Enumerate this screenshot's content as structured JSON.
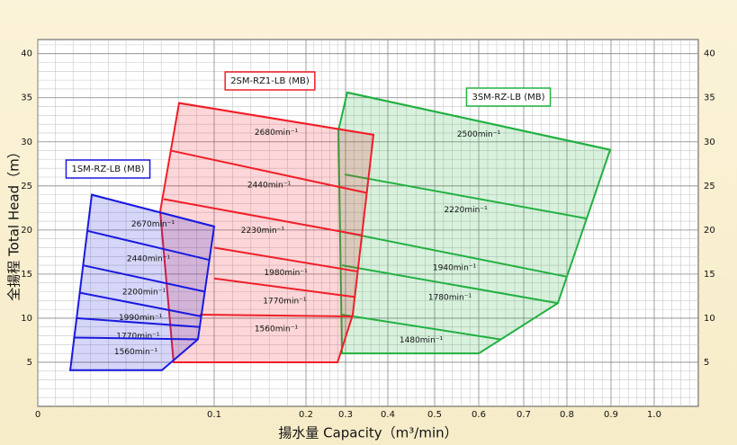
{
  "chart_data": {
    "type": "area",
    "x_label": "揚水量 Capacity（m³/min）",
    "y_label": "全揚程 Total Head（m）",
    "xlim": [
      0,
      1.1
    ],
    "ylim": [
      0,
      41.6
    ],
    "xticks": [
      {
        "value": 0,
        "label": "0"
      },
      0.1,
      0.2,
      0.3,
      0.4,
      0.5,
      0.6,
      0.7,
      0.8,
      0.9,
      {
        "value": 1.0,
        "label": "1.0"
      }
    ],
    "yticks": [
      5,
      10,
      15,
      20,
      25,
      30,
      35,
      40
    ],
    "grid": true,
    "series": [
      {
        "name": "1SM-RZ-LB (MB)",
        "color": "#1a1ae0",
        "outline": {
          "x": [
            0.0306,
            0.1,
            0.0908,
            0.0704,
            0.0184
          ],
          "y": [
            24.0,
            20.4,
            7.6,
            4.1,
            4.1
          ]
        },
        "curves": [
          {
            "label": "2670min⁻¹",
            "x": [
              0.0306,
              0.1
            ],
            "y": [
              24.0,
              20.4
            ]
          },
          {
            "label": "2440min⁻¹",
            "x": [
              0.0281,
              0.0974
            ],
            "y": [
              19.9,
              16.6
            ]
          },
          {
            "label": "2200min⁻¹",
            "x": [
              0.0255,
              0.0949
            ],
            "y": [
              16.0,
              13.0
            ]
          },
          {
            "label": "1990min⁻¹",
            "x": [
              0.0235,
              0.0929
            ],
            "y": [
              12.9,
              10.2
            ]
          },
          {
            "label": "1770min⁻¹",
            "x": [
              0.0219,
              0.0918
            ],
            "y": [
              10.0,
              9.0
            ]
          },
          {
            "label": "1560min⁻¹",
            "x": [
              0.0204,
              0.0908
            ],
            "y": [
              7.8,
              7.6
            ]
          }
        ]
      },
      {
        "name": "2SM-RZ1-LB (MB)",
        "color": "#f01e28",
        "outline": {
          "x": [
            0.0801,
            0.366,
            0.317,
            0.28,
            0.077,
            0.0694
          ],
          "y": [
            34.4,
            30.8,
            10.4,
            5.0,
            5.0,
            22.1
          ]
        },
        "curves": [
          {
            "label": "2680min⁻¹",
            "x": [
              0.0801,
              0.366
            ],
            "y": [
              34.4,
              30.8
            ]
          },
          {
            "label": "2440min⁻¹",
            "x": [
              0.0755,
              0.351
            ],
            "y": [
              29.0,
              24.2
            ]
          },
          {
            "label": "2230min⁻¹",
            "x": [
              0.0714,
              0.338
            ],
            "y": [
              23.5,
              19.4
            ]
          },
          {
            "label": "1980min⁻¹",
            "x": [
              0.1,
              0.328
            ],
            "y": [
              18.0,
              15.3
            ]
          },
          {
            "label": "1770min⁻¹",
            "x": [
              0.1,
              0.323
            ],
            "y": [
              14.5,
              12.4
            ]
          },
          {
            "label": "1560min⁻¹",
            "x": [
              0.0918,
              0.317
            ],
            "y": [
              10.4,
              10.2
            ]
          }
        ]
      },
      {
        "name": "3SM-RZ-LB (MB)",
        "color": "#22b040",
        "outline": {
          "x": [
            0.304,
            0.898,
            0.779,
            0.6,
            0.291,
            0.282
          ],
          "y": [
            35.6,
            29.1,
            11.7,
            6.0,
            6.0,
            31.3
          ]
        },
        "curves": [
          {
            "label": "2500min⁻¹",
            "x": [
              0.304,
              0.898
            ],
            "y": [
              35.6,
              29.1
            ]
          },
          {
            "label": "2220min⁻¹",
            "x": [
              0.298,
              0.845
            ],
            "y": [
              26.3,
              21.3
            ]
          },
          {
            "label": "1940min⁻¹",
            "x": [
              0.291,
              0.8
            ],
            "y": [
              19.8,
              14.7
            ]
          },
          {
            "label": "1780min⁻¹",
            "x": [
              0.291,
              0.779
            ],
            "y": [
              16.0,
              11.7
            ]
          },
          {
            "label": "1480min⁻¹",
            "x": [
              0.291,
              0.648
            ],
            "y": [
              10.4,
              7.6
            ]
          }
        ]
      }
    ]
  }
}
